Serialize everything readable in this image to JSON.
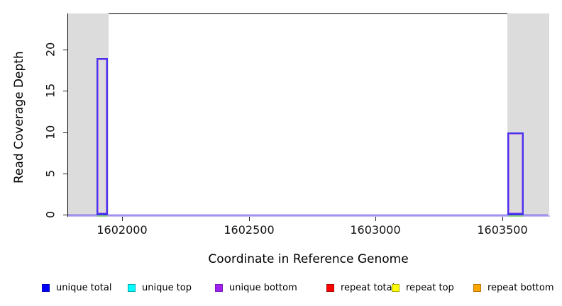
{
  "chart_data": {
    "type": "line",
    "title": "",
    "xlabel": "Coordinate in Reference Genome",
    "ylabel": "Read Coverage Depth",
    "xlim": [
      1601787,
      1603680
    ],
    "ylim": [
      0,
      24.3
    ],
    "grid": false,
    "legend_position": "bottom-horizontal",
    "x_ticks": [
      {
        "value": 1602000,
        "label": "1602000"
      },
      {
        "value": 1602500,
        "label": "1602500"
      },
      {
        "value": 1603000,
        "label": "1603000"
      },
      {
        "value": 1603500,
        "label": "1603500"
      }
    ],
    "y_ticks": [
      {
        "value": 0,
        "label": "0"
      },
      {
        "value": 5,
        "label": "5"
      },
      {
        "value": 10,
        "label": "10"
      },
      {
        "value": 15,
        "label": "15"
      },
      {
        "value": 20,
        "label": "20"
      }
    ],
    "series": [
      {
        "name": "unique total",
        "color": "#0000FF",
        "border": "#0000B8"
      },
      {
        "name": "unique top",
        "color": "#00FFFF",
        "border": "#00A8B0"
      },
      {
        "name": "unique bottom",
        "color": "#A020F0",
        "border": "#7718B4"
      },
      {
        "name": "repeat total",
        "color": "#FF0000",
        "border": "#A80000"
      },
      {
        "name": "repeat top",
        "color": "#FFFF00",
        "border": "#B0B000"
      },
      {
        "name": "repeat bottom",
        "color": "#FFA500",
        "border": "#B87400"
      }
    ],
    "coverage_segments": [
      {
        "x_start": 1601787,
        "x_end": 1601900,
        "depth": 0
      },
      {
        "x_start": 1601900,
        "x_end": 1601945,
        "depth": 19,
        "series": [
          "unique total",
          "unique bottom"
        ]
      },
      {
        "x_start": 1601945,
        "x_end": 1603520,
        "depth": 0
      },
      {
        "x_start": 1603520,
        "x_end": 1603585,
        "depth": 10,
        "series": [
          "unique total",
          "unique bottom"
        ]
      },
      {
        "x_start": 1603585,
        "x_end": 1603680,
        "depth": 0
      }
    ],
    "shaded_regions": [
      {
        "x_start": 1601787,
        "x_end": 1601947,
        "color": "#DCDCDC"
      },
      {
        "x_start": 1603520,
        "x_end": 1603680,
        "color": "#DCDCDC"
      }
    ],
    "baseline_colors": {
      "top": "#3a2cea",
      "under": "#c6b5f2",
      "spike_base": "#8ed87c"
    }
  }
}
